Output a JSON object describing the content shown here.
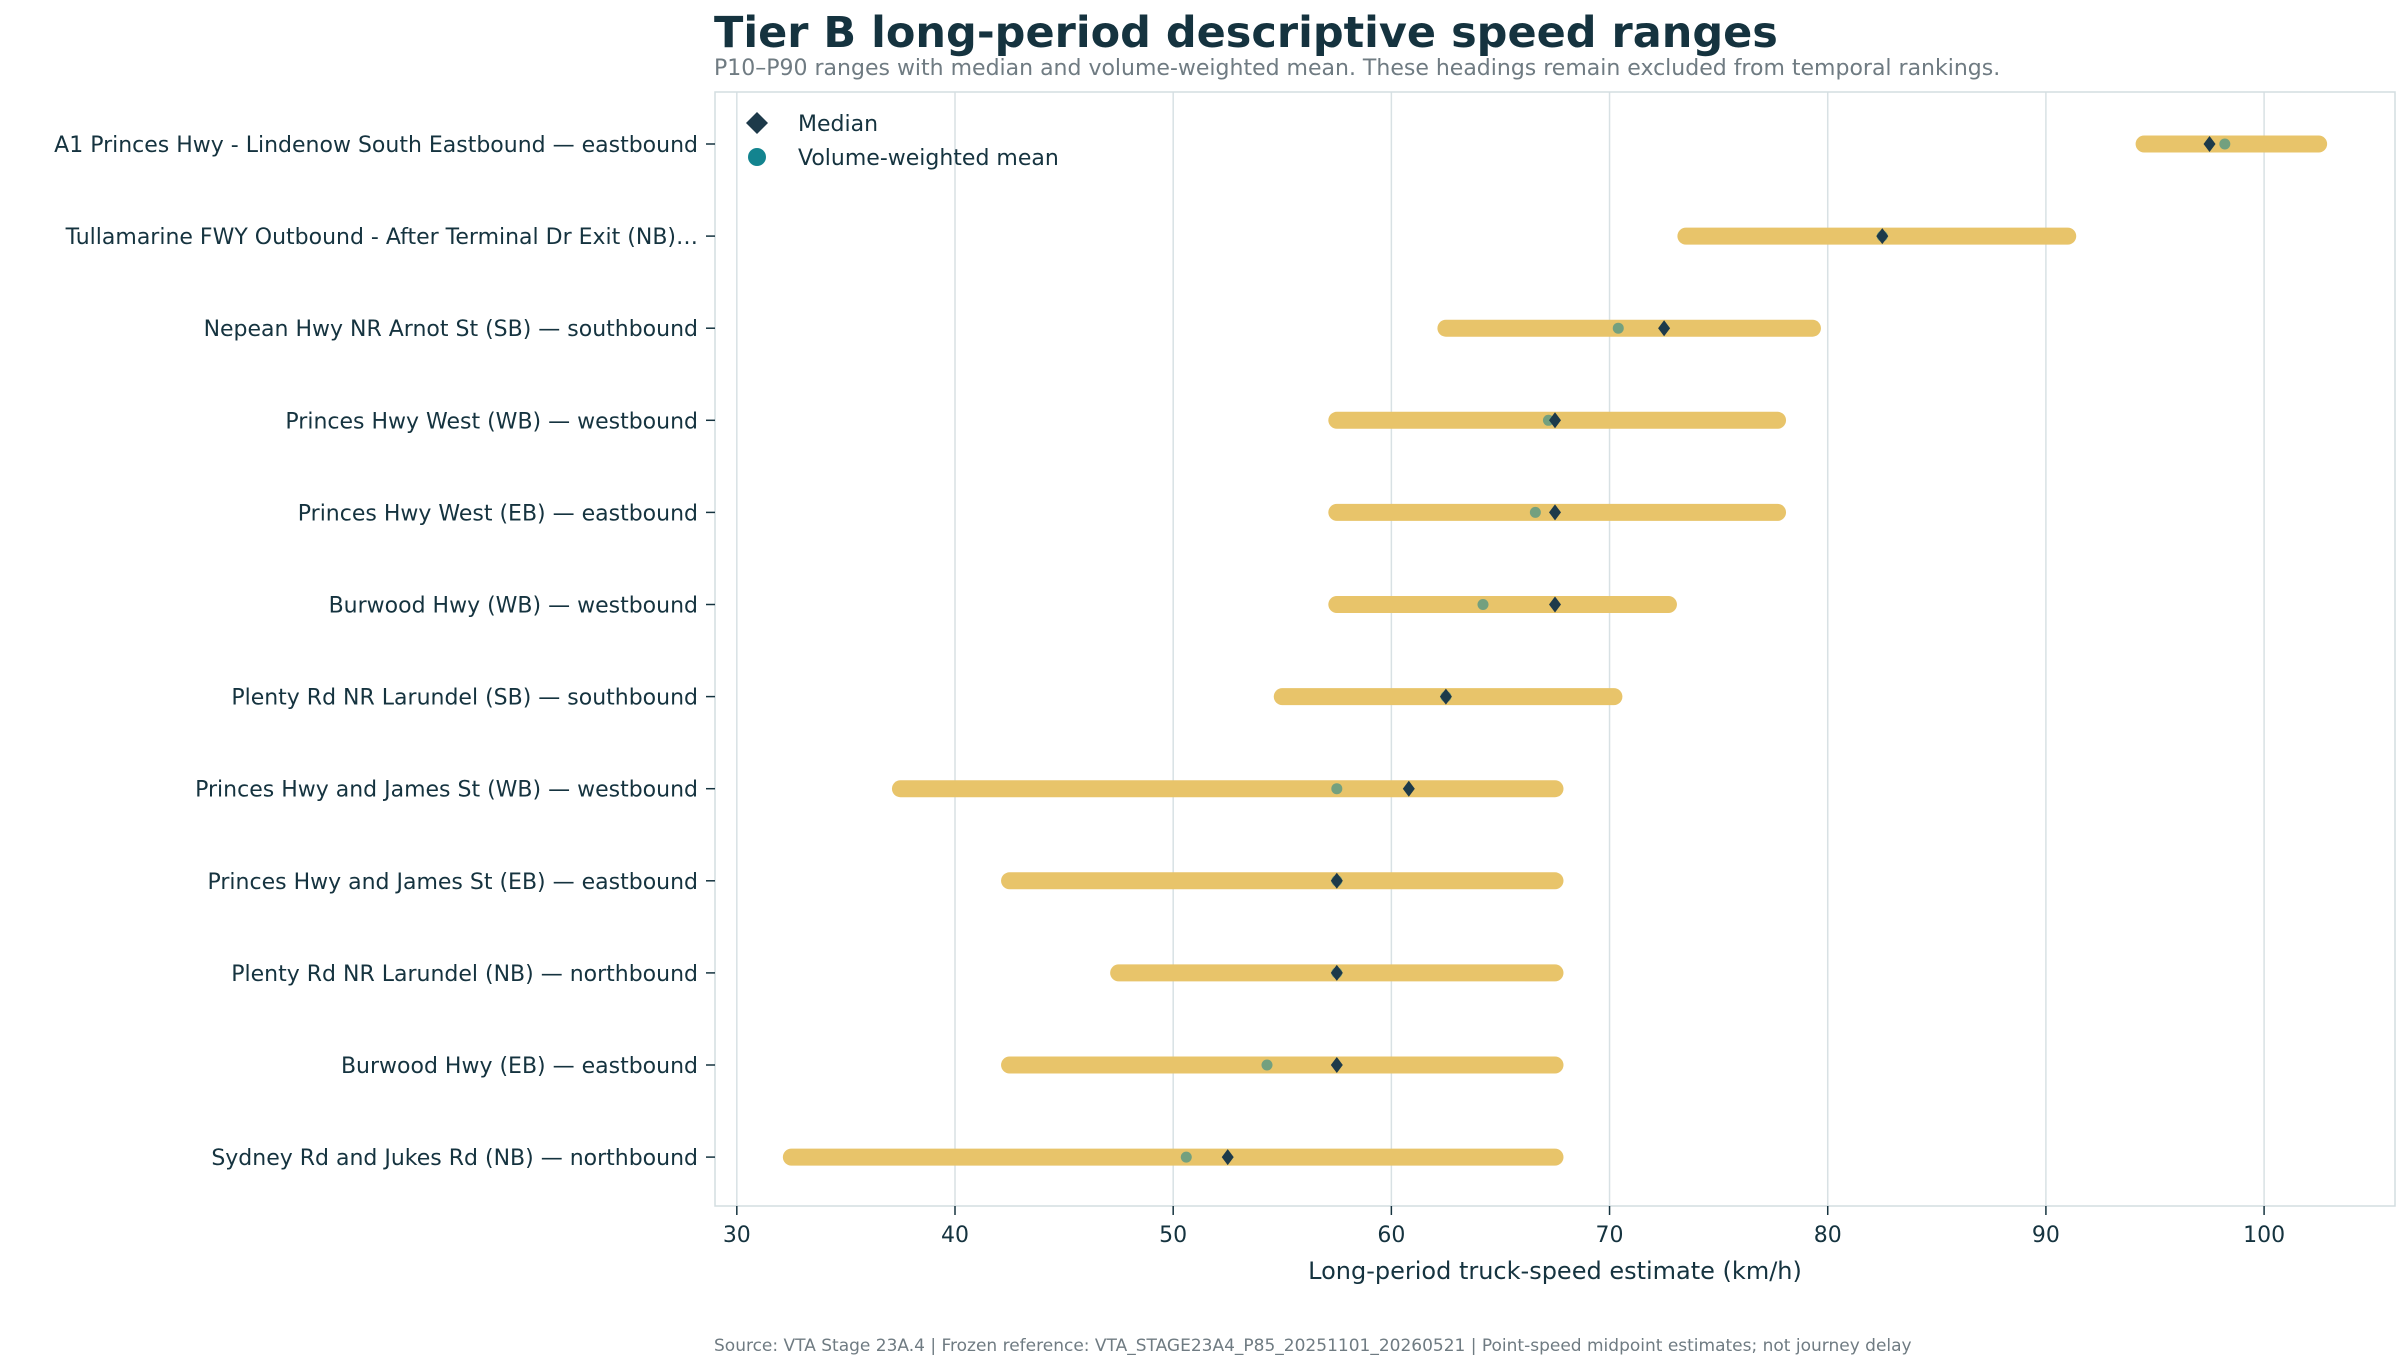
{
  "title": "Tier B long-period descriptive speed ranges",
  "subtitle": "P10–P90 ranges with median and volume-weighted mean. These headings remain excluded from temporal rankings.",
  "source": "Source: VTA Stage 23A.4 | Frozen reference: VTA_STAGE23A4_P85_20251101_20260521 | Point-speed midpoint estimates; not journey delay",
  "colors": {
    "range": "#e8c46a",
    "median": "#1d3a4a",
    "mean": "#13848f",
    "grid": "#d8e1e4",
    "frame": "#d3dde1",
    "text": "#15333f"
  },
  "chart_data": {
    "type": "range",
    "xlabel": "Long-period truck-speed estimate (km/h)",
    "xlim": [
      29,
      106
    ],
    "xticks": [
      30,
      40,
      50,
      60,
      70,
      80,
      90,
      100
    ],
    "grid": "vertical",
    "legend": {
      "placement": "top-left",
      "items": [
        {
          "label": "Median",
          "marker": "diamond"
        },
        {
          "label": "Volume-weighted mean",
          "marker": "circle"
        }
      ]
    },
    "categories": [
      "A1 Princes Hwy - Lindenow South Eastbound — eastbound",
      "Tullamarine FWY Outbound - After Terminal Dr Exit (NB)…",
      "Nepean Hwy NR Arnot St (SB) — southbound",
      "Princes Hwy West (WB) — westbound",
      "Princes Hwy West (EB) — eastbound",
      "Burwood Hwy (WB) — westbound",
      "Plenty Rd NR Larundel (SB) — southbound",
      "Princes Hwy and James St (WB) — westbound",
      "Princes Hwy and James St (EB) — eastbound",
      "Plenty Rd NR Larundel (NB) — northbound",
      "Burwood Hwy (EB) — eastbound",
      "Sydney Rd and Jukes Rd (NB) — northbound"
    ],
    "p10": [
      94.5,
      73.5,
      62.5,
      57.5,
      57.5,
      57.5,
      55.0,
      37.5,
      42.5,
      47.5,
      42.5,
      32.5
    ],
    "p90": [
      102.5,
      91.0,
      79.3,
      77.7,
      77.7,
      72.7,
      70.2,
      67.5,
      67.5,
      67.5,
      67.5,
      67.5
    ],
    "median": [
      97.5,
      82.5,
      72.5,
      67.5,
      67.5,
      67.5,
      62.5,
      60.8,
      57.5,
      57.5,
      57.5,
      52.5
    ],
    "mean": [
      98.2,
      82.5,
      70.4,
      67.2,
      66.6,
      64.2,
      62.5,
      57.5,
      57.5,
      57.5,
      54.3,
      50.6
    ]
  }
}
